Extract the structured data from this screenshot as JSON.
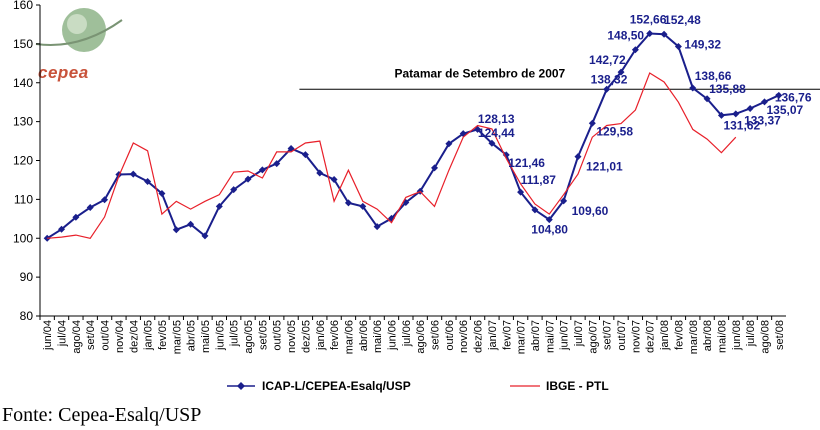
{
  "chart_data": {
    "type": "line",
    "logo_label": "cepea",
    "annotation": "Patamar de Setembro de 2007",
    "ylim": [
      80,
      160
    ],
    "yticks": [
      80,
      90,
      100,
      110,
      120,
      130,
      140,
      150,
      160
    ],
    "threshold": 138.32,
    "categories": [
      "jun/04",
      "jul/04",
      "ago/04",
      "set/04",
      "out/04",
      "nov/04",
      "dez/04",
      "jan/05",
      "fev/05",
      "mar/05",
      "abr/05",
      "mai/05",
      "jun/05",
      "jul/05",
      "ago/05",
      "set/05",
      "out/05",
      "nov/05",
      "dez/05",
      "jan/06",
      "fev/06",
      "mar/06",
      "abr/06",
      "mai/06",
      "jun/06",
      "jul/06",
      "ago/06",
      "set/06",
      "out/06",
      "nov/06",
      "dez/06",
      "jan/07",
      "fev/07",
      "mar/07",
      "abr/07",
      "mai/07",
      "jun/07",
      "jul/07",
      "ago/07",
      "set/07",
      "out/07",
      "nov/07",
      "dez/07",
      "jan/08",
      "fev/08",
      "mar/08",
      "abr/08",
      "mai/08",
      "jun/08",
      "jul/08",
      "ago/08",
      "set/08"
    ],
    "series": [
      {
        "name": "ICAP-L/CEPEA-Esalq/USP",
        "color": "#1a1f8c",
        "values": [
          100,
          102.3,
          105.4,
          107.9,
          109.9,
          116.4,
          116.5,
          114.6,
          111.5,
          102.2,
          103.6,
          100.6,
          108.2,
          112.5,
          115.2,
          117.6,
          119.2,
          123.1,
          121.5,
          116.8,
          115.1,
          109.1,
          108.2,
          103.0,
          105.1,
          109.2,
          112.1,
          118.1,
          124.3,
          126.9,
          128.0,
          124.44,
          121.46,
          111.87,
          107.3,
          104.8,
          109.6,
          121.01,
          129.58,
          138.32,
          142.72,
          148.5,
          152.66,
          152.48,
          149.32,
          138.66,
          135.88,
          131.62,
          132.0,
          133.37,
          135.07,
          136.76
        ]
      },
      {
        "name": "IBGE - PTL",
        "color": "#e8202a",
        "values": [
          100,
          100.3,
          100.8,
          100.0,
          105.5,
          116.0,
          124.5,
          122.5,
          106.2,
          109.5,
          107.5,
          109.5,
          111.2,
          117.0,
          117.3,
          115.5,
          122.2,
          122.2,
          124.5,
          125.0,
          109.5,
          117.5,
          109.5,
          107.5,
          104.0,
          110.5,
          112.0,
          108.2,
          117.5,
          126.0,
          129.0,
          128.13,
          120.5,
          114.0,
          108.8,
          106.2,
          111.2,
          116.5,
          126.0,
          129.0,
          129.5,
          133.0,
          142.5,
          140.2,
          135.0,
          128.0,
          125.5,
          122.0,
          126.0,
          null,
          null,
          null
        ]
      }
    ],
    "data_labels": [
      {
        "series": 0,
        "index": 31,
        "text": "124,44"
      },
      {
        "series": 0,
        "index": 32,
        "text": "121,46"
      },
      {
        "series": 0,
        "index": 33,
        "text": "111,87"
      },
      {
        "series": 0,
        "index": 35,
        "text": "104,80"
      },
      {
        "series": 0,
        "index": 36,
        "text": "109,60"
      },
      {
        "series": 0,
        "index": 37,
        "text": "121,01"
      },
      {
        "series": 0,
        "index": 38,
        "text": "129,58"
      },
      {
        "series": 0,
        "index": 39,
        "text": "138,32"
      },
      {
        "series": 0,
        "index": 40,
        "text": "142,72"
      },
      {
        "series": 0,
        "index": 41,
        "text": "148,50"
      },
      {
        "series": 0,
        "index": 42,
        "text": "152,66"
      },
      {
        "series": 0,
        "index": 43,
        "text": "152,48"
      },
      {
        "series": 0,
        "index": 44,
        "text": "149,32"
      },
      {
        "series": 0,
        "index": 45,
        "text": "138,66"
      },
      {
        "series": 0,
        "index": 46,
        "text": "135,88"
      },
      {
        "series": 0,
        "index": 47,
        "text": "131,62"
      },
      {
        "series": 0,
        "index": 49,
        "text": "133,37"
      },
      {
        "series": 0,
        "index": 50,
        "text": "135,07"
      },
      {
        "series": 0,
        "index": 51,
        "text": "136,76"
      },
      {
        "series": 1,
        "index": 31,
        "text": "128,13"
      }
    ]
  },
  "source": "Fonte: Cepea-Esalq/USP"
}
